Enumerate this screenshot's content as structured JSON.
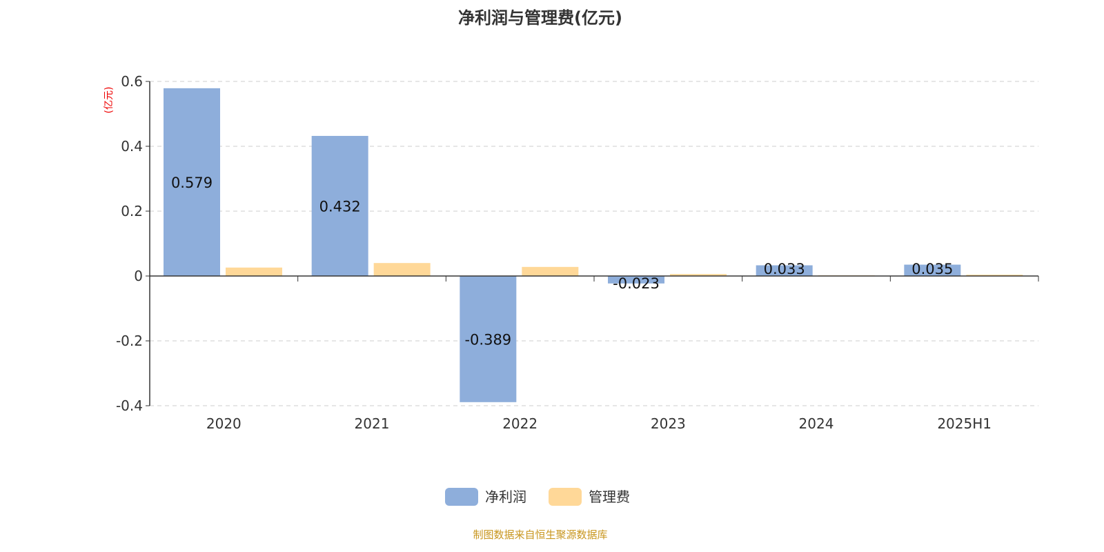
{
  "chart_data": {
    "type": "bar",
    "title": "净利润与管理费(亿元)",
    "ylabel": "(亿元)",
    "categories": [
      "2020",
      "2021",
      "2022",
      "2023",
      "2024",
      "2025H1"
    ],
    "series": [
      {
        "name": "净利润",
        "color": "#8eaedb",
        "values": [
          0.579,
          0.432,
          -0.389,
          -0.023,
          0.033,
          0.035
        ],
        "labels": [
          "0.579",
          "0.432",
          "-0.389",
          "-0.023",
          "0.033",
          "0.035"
        ]
      },
      {
        "name": "管理费",
        "color": "#ffd898",
        "values": [
          0.026,
          0.04,
          0.028,
          0.006,
          0.002,
          0.004
        ]
      }
    ],
    "ylim": [
      -0.4,
      0.6
    ],
    "yticks": [
      "-0.4",
      "-0.2",
      "0",
      "0.2",
      "0.4",
      "0.6"
    ],
    "grid": true,
    "legend": "bottom"
  },
  "source": "制图数据来自恒生聚源数据库"
}
